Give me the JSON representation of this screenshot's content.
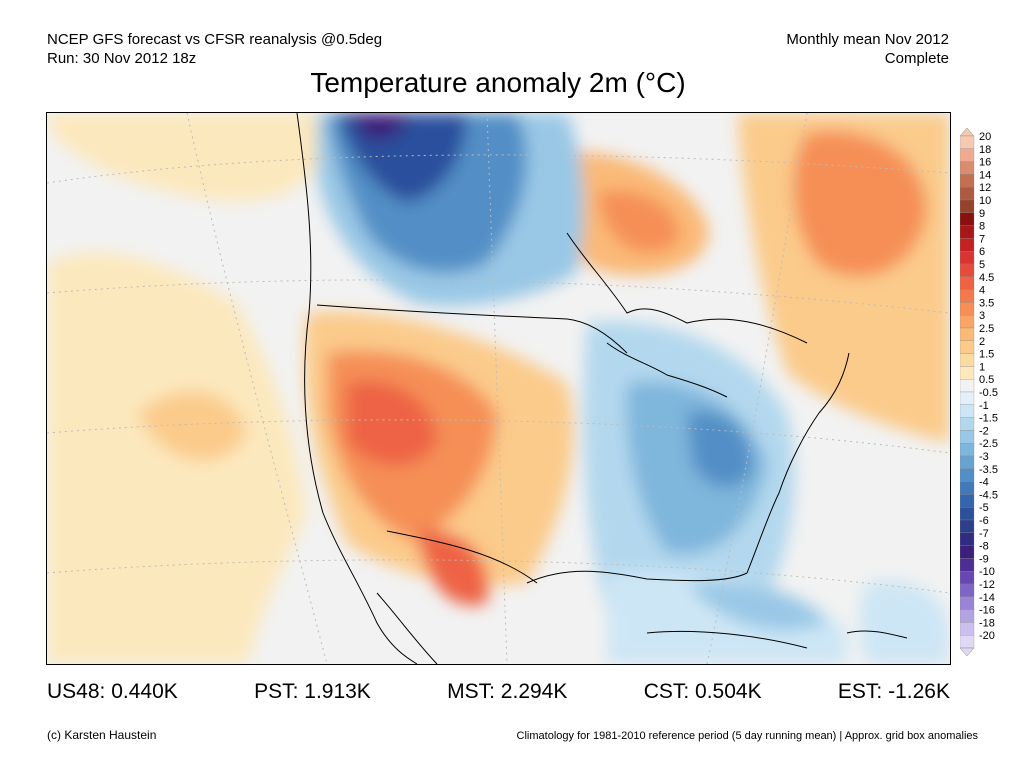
{
  "header": {
    "left_line1": "NCEP GFS forecast vs CFSR reanalysis @0.5deg",
    "left_line2": "Run: 30 Nov 2012 18z",
    "right_line1": "Monthly mean Nov 2012",
    "right_line2": "Complete"
  },
  "title": "Temperature anomaly 2m (°C)",
  "legend": {
    "levels": [
      {
        "label": "20",
        "color": "#f6c9b3"
      },
      {
        "label": "18",
        "color": "#efab90"
      },
      {
        "label": "16",
        "color": "#d98c6e"
      },
      {
        "label": "14",
        "color": "#c26f52"
      },
      {
        "label": "12",
        "color": "#ad5a40"
      },
      {
        "label": "10",
        "color": "#96432d"
      },
      {
        "label": "9",
        "color": "#8a0f0f"
      },
      {
        "label": "8",
        "color": "#a81717"
      },
      {
        "label": "7",
        "color": "#c42121"
      },
      {
        "label": "6",
        "color": "#d93333"
      },
      {
        "label": "5",
        "color": "#e64a3a"
      },
      {
        "label": "4.5",
        "color": "#ee6344"
      },
      {
        "label": "4",
        "color": "#f27a4c"
      },
      {
        "label": "3.5",
        "color": "#f58f57"
      },
      {
        "label": "3",
        "color": "#f8a565"
      },
      {
        "label": "2.5",
        "color": "#fab977"
      },
      {
        "label": "2",
        "color": "#fbcb8b"
      },
      {
        "label": "1.5",
        "color": "#fcdba1"
      },
      {
        "label": "1",
        "color": "#fce8bd"
      },
      {
        "label": "0.5",
        "color": "#f2f2f2"
      },
      {
        "label": "-0.5",
        "color": "#e3f0fa"
      },
      {
        "label": "-1",
        "color": "#cde6f5"
      },
      {
        "label": "-1.5",
        "color": "#b3d8ee"
      },
      {
        "label": "-2",
        "color": "#99c8e6"
      },
      {
        "label": "-2.5",
        "color": "#7fb6dc"
      },
      {
        "label": "-3",
        "color": "#67a3d1"
      },
      {
        "label": "-3.5",
        "color": "#528fc6"
      },
      {
        "label": "-4",
        "color": "#417aba"
      },
      {
        "label": "-4.5",
        "color": "#3566ad"
      },
      {
        "label": "-5",
        "color": "#2c509c"
      },
      {
        "label": "-6",
        "color": "#2c3f8c"
      },
      {
        "label": "-7",
        "color": "#2f2c82"
      },
      {
        "label": "-8",
        "color": "#3b1f7a"
      },
      {
        "label": "-9",
        "color": "#4f2e94"
      },
      {
        "label": "-10",
        "color": "#6747b0"
      },
      {
        "label": "-12",
        "color": "#7f64c6"
      },
      {
        "label": "-14",
        "color": "#9a84d6"
      },
      {
        "label": "-16",
        "color": "#b4a3e3"
      },
      {
        "label": "-18",
        "color": "#cbbfee"
      },
      {
        "label": "-20",
        "color": "#e0d9f6"
      }
    ]
  },
  "stats": [
    {
      "label": "US48: 0.440K"
    },
    {
      "label": "PST: 1.913K"
    },
    {
      "label": "MST: 2.294K"
    },
    {
      "label": "CST: 0.504K"
    },
    {
      "label": "EST: -1.26K"
    }
  ],
  "footer": {
    "credit": "(c) Karsten Haustein",
    "note": "Climatology for 1981-2010 reference period (5 day running mean) | Approx. grid box anomalies"
  }
}
